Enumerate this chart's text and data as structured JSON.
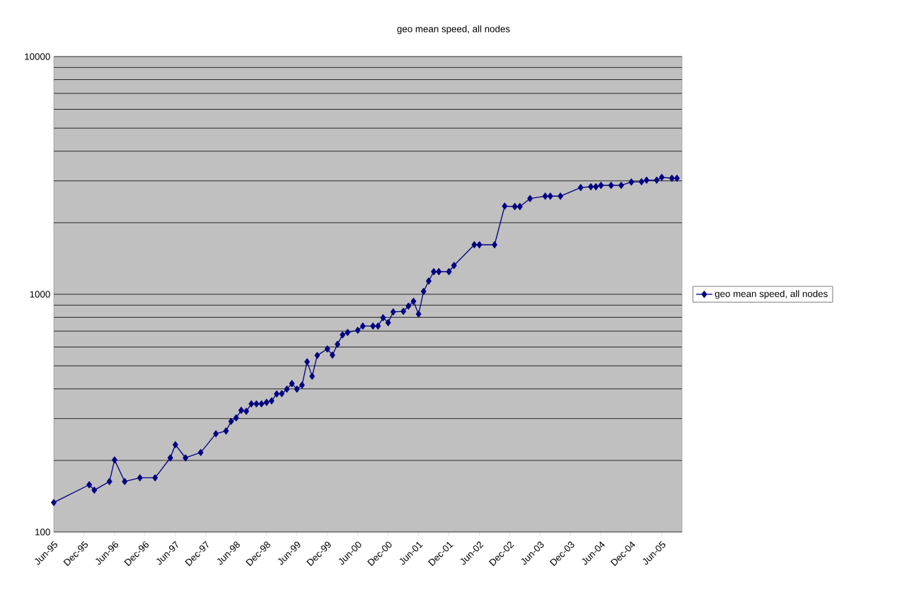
{
  "chart_data": {
    "type": "line",
    "title": "geo mean speed, all nodes",
    "x": [
      "1995-06",
      "1996-01",
      "1996-02",
      "1996-05",
      "1996-06",
      "1996-08",
      "1996-11",
      "1997-02",
      "1997-05",
      "1997-06",
      "1997-08",
      "1997-11",
      "1998-02",
      "1998-04",
      "1998-05",
      "1998-06",
      "1998-07",
      "1998-08",
      "1998-09",
      "1998-10",
      "1998-11",
      "1998-12",
      "1999-01",
      "1999-02",
      "1999-03",
      "1999-04",
      "1999-05",
      "1999-06",
      "1999-07",
      "1999-08",
      "1999-09",
      "1999-10",
      "1999-12",
      "2000-01",
      "2000-02",
      "2000-03",
      "2000-04",
      "2000-06",
      "2000-07",
      "2000-09",
      "2000-10",
      "2000-11",
      "2000-12",
      "2001-01",
      "2001-03",
      "2001-04",
      "2001-05",
      "2001-06",
      "2001-07",
      "2001-08",
      "2001-09",
      "2001-10",
      "2001-12",
      "2002-01",
      "2002-05",
      "2002-06",
      "2002-09",
      "2002-11",
      "2003-01",
      "2003-02",
      "2003-04",
      "2003-07",
      "2003-08",
      "2003-10",
      "2004-02",
      "2004-04",
      "2004-05",
      "2004-06",
      "2004-08",
      "2004-10",
      "2004-12",
      "2005-02",
      "2005-03",
      "2005-05",
      "2005-06",
      "2005-08",
      "2005-09"
    ],
    "series": [
      {
        "name": "geo mean speed, all nodes",
        "color": "#000080",
        "values": [
          133,
          158,
          150,
          163,
          201,
          163,
          169,
          169,
          205,
          233,
          205,
          216,
          259,
          266,
          292,
          302,
          325,
          322,
          346,
          346,
          346,
          351,
          356,
          381,
          382,
          399,
          421,
          399,
          415,
          520,
          452,
          553,
          589,
          555,
          616,
          675,
          691,
          706,
          735,
          735,
          735,
          797,
          760,
          843,
          848,
          892,
          934,
          826,
          1028,
          1137,
          1245,
          1245,
          1245,
          1322,
          1616,
          1616,
          1616,
          2350,
          2339,
          2339,
          2528,
          2587,
          2587,
          2587,
          2813,
          2834,
          2834,
          2873,
          2873,
          2873,
          2967,
          2975,
          3020,
          3020,
          3104,
          3076,
          3076
        ]
      }
    ],
    "log": "y",
    "xlim": [
      "1995-06",
      "2005-10"
    ],
    "ylim": [
      100,
      10000
    ],
    "xticks": [
      {
        "value": "1995-06",
        "label": "Jun-95"
      },
      {
        "value": "1995-12",
        "label": "Dec-95"
      },
      {
        "value": "1996-06",
        "label": "Jun-96"
      },
      {
        "value": "1996-12",
        "label": "Dec-96"
      },
      {
        "value": "1997-06",
        "label": "Jun-97"
      },
      {
        "value": "1997-12",
        "label": "Dec-97"
      },
      {
        "value": "1998-06",
        "label": "Jun-98"
      },
      {
        "value": "1998-12",
        "label": "Dec-98"
      },
      {
        "value": "1999-06",
        "label": "Jun-99"
      },
      {
        "value": "1999-12",
        "label": "Dec-99"
      },
      {
        "value": "2000-06",
        "label": "Jun-00"
      },
      {
        "value": "2000-12",
        "label": "Dec-00"
      },
      {
        "value": "2001-06",
        "label": "Jun-01"
      },
      {
        "value": "2001-12",
        "label": "Dec-01"
      },
      {
        "value": "2002-06",
        "label": "Jun-02"
      },
      {
        "value": "2002-12",
        "label": "Dec-02"
      },
      {
        "value": "2003-06",
        "label": "Jun-03"
      },
      {
        "value": "2003-12",
        "label": "Dec-03"
      },
      {
        "value": "2004-06",
        "label": "Jun-04"
      },
      {
        "value": "2004-12",
        "label": "Dec-04"
      },
      {
        "value": "2005-06",
        "label": "Jun-05"
      }
    ],
    "yticks": [
      100,
      {
        "value": 200,
        "label": null
      },
      {
        "value": 300,
        "label": null
      },
      {
        "value": 400,
        "label": null
      },
      {
        "value": 500,
        "label": null
      },
      {
        "value": 600,
        "label": null
      },
      {
        "value": 700,
        "label": null
      },
      {
        "value": 800,
        "label": null
      },
      {
        "value": 900,
        "label": null
      },
      1000,
      {
        "value": 2000,
        "label": null
      },
      {
        "value": 3000,
        "label": null
      },
      {
        "value": 4000,
        "label": null
      },
      {
        "value": 5000,
        "label": null
      },
      {
        "value": 6000,
        "label": null
      },
      {
        "value": 7000,
        "label": null
      },
      {
        "value": 8000,
        "label": null
      },
      {
        "value": 9000,
        "label": null
      },
      10000
    ],
    "grid": "y",
    "legend": "right",
    "marker": "diamond",
    "line_style": "solid"
  }
}
